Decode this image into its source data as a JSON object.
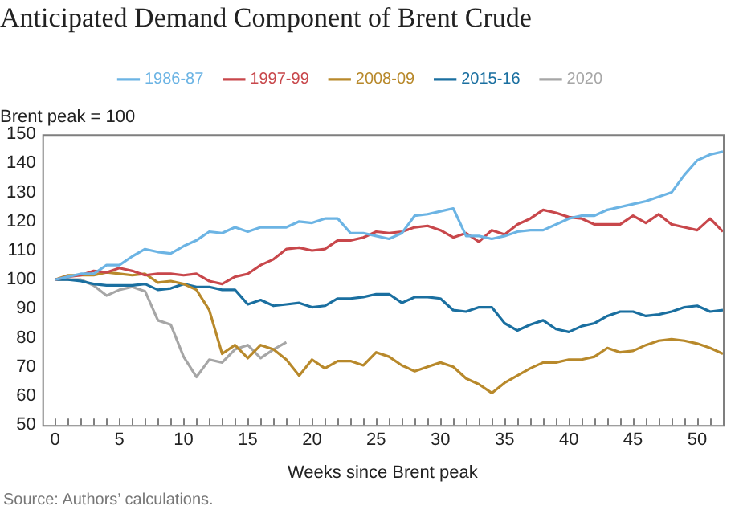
{
  "chart_data": {
    "type": "line",
    "title": "Anticipated Demand Component of Brent Crude",
    "ylabel": "Brent peak = 100",
    "xlabel": "Weeks since Brent peak",
    "annotations": [
      "Source: Authors’ calculations."
    ],
    "x": [
      0,
      1,
      2,
      3,
      4,
      5,
      6,
      7,
      8,
      9,
      10,
      11,
      12,
      13,
      14,
      15,
      16,
      17,
      18,
      19,
      20,
      21,
      22,
      23,
      24,
      25,
      26,
      27,
      28,
      29,
      30,
      31,
      32,
      33,
      34,
      35,
      36,
      37,
      38,
      39,
      40,
      41,
      42,
      43,
      44,
      45,
      46,
      47,
      48,
      49,
      50,
      51,
      52
    ],
    "series": [
      {
        "name": "1986-87",
        "color": "#6cb4e4",
        "values": [
          100,
          101,
          102,
          102,
          105,
          105,
          108,
          110.5,
          109.5,
          109,
          111.5,
          113.5,
          116.5,
          116,
          118,
          116.5,
          118,
          118,
          118,
          120,
          119.5,
          121,
          121,
          116,
          116,
          115,
          114,
          116,
          122,
          122.5,
          123.5,
          124.5,
          115,
          115,
          114,
          115,
          116.5,
          117,
          117,
          119,
          121,
          122,
          122,
          124,
          125,
          126,
          127,
          128.5,
          130,
          136,
          141,
          143,
          144
        ]
      },
      {
        "name": "1997-99",
        "color": "#c8474b",
        "values": [
          100,
          101,
          101.5,
          103,
          102.5,
          104,
          103,
          101.5,
          102,
          102,
          101.5,
          102,
          99.5,
          98.5,
          101,
          102,
          105,
          107,
          110.5,
          111,
          110,
          110.5,
          113.5,
          113.5,
          114.5,
          116.5,
          116,
          116.5,
          118,
          118.5,
          117,
          114.5,
          116,
          113,
          117,
          115.5,
          119,
          121,
          124,
          123,
          121.5,
          121,
          119,
          119,
          119,
          122,
          119.5,
          122.5,
          119,
          118,
          117,
          121,
          116.5
        ]
      },
      {
        "name": "2008-09",
        "color": "#b8892b",
        "values": [
          100,
          101.5,
          101.5,
          101.5,
          102.5,
          102,
          101.5,
          102,
          99,
          99.5,
          98.5,
          96.5,
          89.5,
          74.5,
          77.5,
          73,
          77.5,
          76,
          72.5,
          67,
          72.5,
          69.5,
          72,
          72,
          70.5,
          75,
          73.5,
          70.5,
          68.5,
          70,
          71.5,
          70,
          66,
          64,
          61,
          64.5,
          67,
          69.5,
          71.5,
          71.5,
          72.5,
          72.5,
          73.5,
          76.5,
          75,
          75.5,
          77.5,
          79,
          79.5,
          79,
          78,
          76.5,
          74.5
        ]
      },
      {
        "name": "2015-16",
        "color": "#1a6fa0",
        "values": [
          100,
          100,
          99.5,
          98.5,
          98,
          98,
          98,
          98.5,
          96.5,
          97,
          98.5,
          97.5,
          97.5,
          96.5,
          96.5,
          91.5,
          93,
          91,
          91.5,
          92,
          90.5,
          91,
          93.5,
          93.5,
          94,
          95,
          95,
          92,
          94,
          94,
          93.5,
          89.5,
          89,
          90.5,
          90.5,
          85,
          82.5,
          84.5,
          86,
          83,
          82,
          84,
          85,
          87.5,
          89,
          89,
          87.5,
          88,
          89,
          90.5,
          91,
          89,
          89.5
        ]
      },
      {
        "name": "2020",
        "color": "#a6a6a6",
        "values": [
          100,
          100,
          100,
          98,
          94.5,
          96.5,
          97.5,
          96,
          86,
          84.5,
          73.5,
          66.5,
          72.5,
          71.5,
          76,
          77.5,
          73,
          76,
          78.5,
          null,
          null,
          null,
          null,
          null,
          null,
          null,
          null,
          null,
          null,
          null,
          null,
          null,
          null,
          null,
          null,
          null,
          null,
          null,
          null,
          null,
          null,
          null,
          null,
          null,
          null,
          null,
          null,
          null,
          null,
          null,
          null,
          null,
          null
        ]
      }
    ],
    "xlim": [
      -1,
      52
    ],
    "xticks": [
      0,
      5,
      10,
      15,
      20,
      25,
      30,
      35,
      40,
      45,
      50
    ],
    "ylim": [
      50,
      150
    ],
    "yticks": [
      50,
      60,
      70,
      80,
      90,
      100,
      110,
      120,
      130,
      140,
      150
    ],
    "legend": "top",
    "grid": false,
    "marker": "none",
    "line_style": "solid"
  }
}
